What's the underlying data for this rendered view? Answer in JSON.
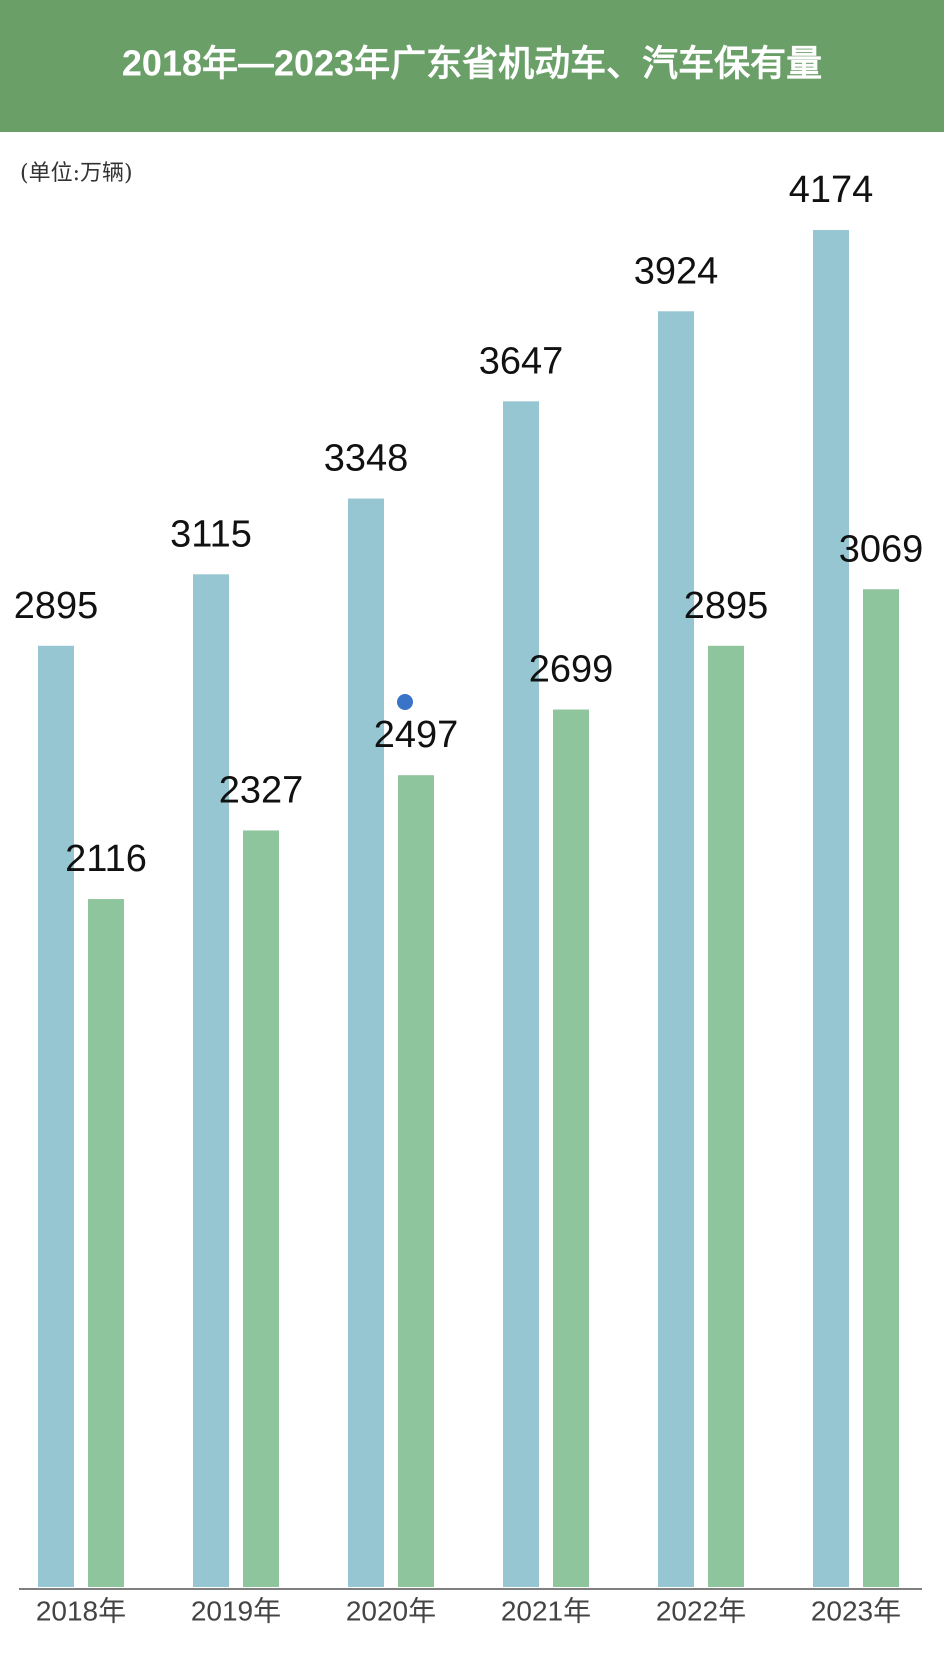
{
  "chart_data": {
    "type": "bar",
    "title": "2018年—2023年广东省机动车、汽车保有量",
    "unit": "(单位:万辆)",
    "categories": [
      "2018年",
      "2019年",
      "2020年",
      "2021年",
      "2022年",
      "2023年"
    ],
    "series": [
      {
        "color": "#97c6d3",
        "values": [
          2895,
          3115,
          3348,
          3647,
          3924,
          4174
        ]
      },
      {
        "color": "#8ec59c",
        "values": [
          2116,
          2327,
          2497,
          2699,
          2895,
          3069
        ]
      }
    ],
    "ylim": [
      0,
      4500
    ],
    "grid": false
  }
}
